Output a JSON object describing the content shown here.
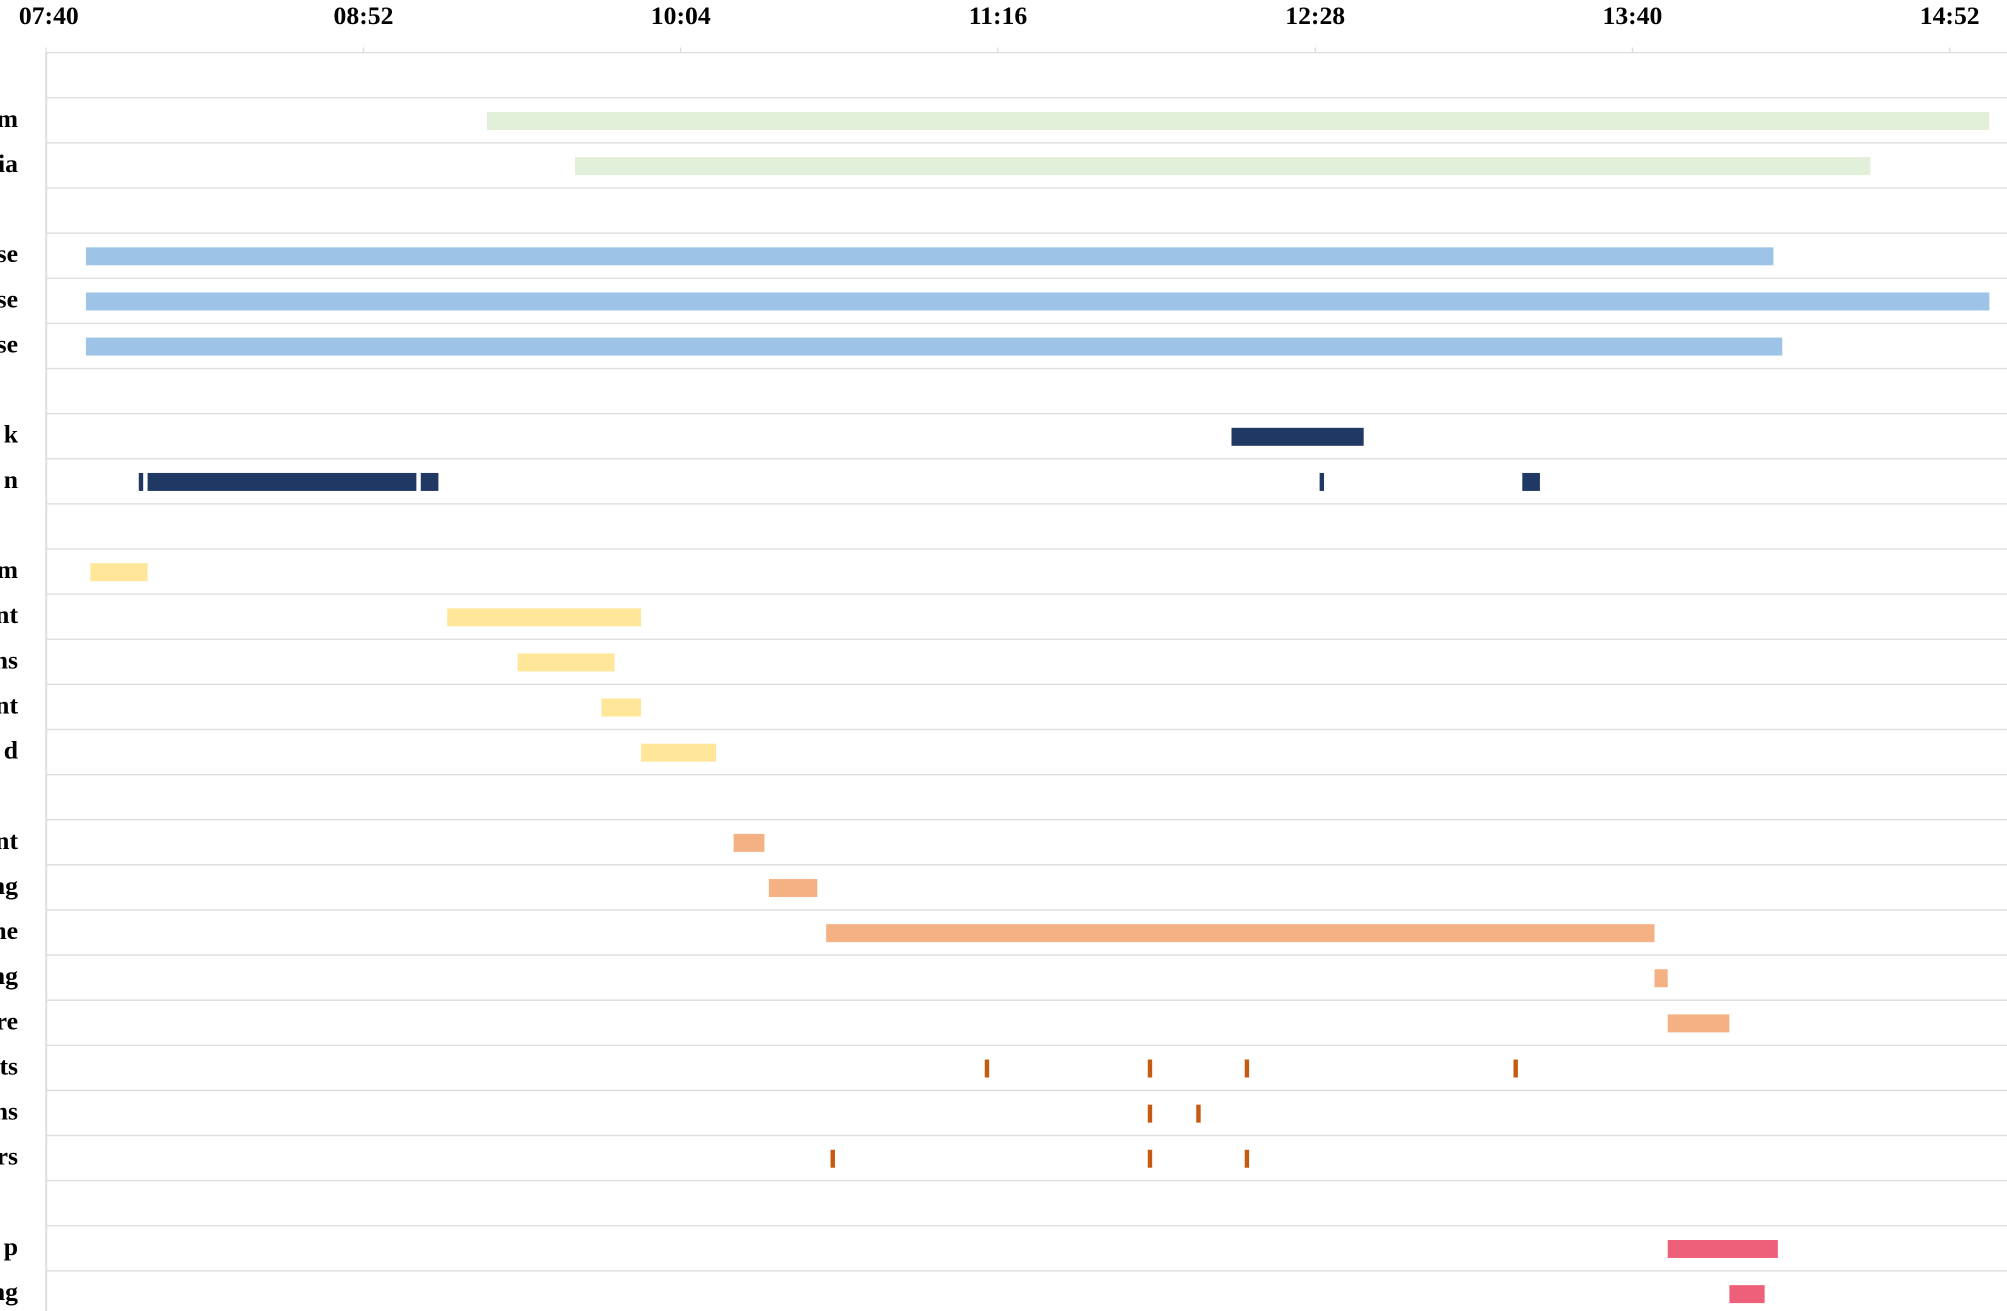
{
  "chart_data": {
    "type": "gantt",
    "xlim": [
      460,
      905
    ],
    "xticks": [
      {
        "value": 460,
        "label": "07:40"
      },
      {
        "value": 532,
        "label": "08:52"
      },
      {
        "value": 604,
        "label": "10:04"
      },
      {
        "value": 676,
        "label": "11:16"
      },
      {
        "value": 748,
        "label": "12:28"
      },
      {
        "value": 820,
        "label": "13:40"
      },
      {
        "value": 892,
        "label": "14:52"
      }
    ],
    "grid": true,
    "rows": [
      {
        "label": null,
        "color": null,
        "segments": []
      },
      {
        "label": "m",
        "color": "#e2efd9",
        "segments": [
          [
            560,
            901
          ]
        ]
      },
      {
        "label": "ia",
        "color": "#e2efd9",
        "segments": [
          [
            580,
            874
          ]
        ]
      },
      {
        "label": null,
        "color": null,
        "segments": []
      },
      {
        "label": "se",
        "color": "#9dc3e6",
        "segments": [
          [
            469,
            852
          ]
        ]
      },
      {
        "label": "se",
        "color": "#9dc3e6",
        "segments": [
          [
            469,
            901
          ]
        ]
      },
      {
        "label": "se",
        "color": "#9dc3e6",
        "segments": [
          [
            469,
            854
          ]
        ]
      },
      {
        "label": null,
        "color": null,
        "segments": []
      },
      {
        "label": "k",
        "color": "#203864",
        "segments": [
          [
            729,
            759
          ]
        ]
      },
      {
        "label": "n",
        "color": "#203864",
        "segments": [
          [
            481,
            482
          ],
          [
            483,
            544
          ],
          [
            545,
            549
          ],
          [
            749,
            750
          ],
          [
            795,
            799
          ]
        ]
      },
      {
        "label": null,
        "color": null,
        "segments": []
      },
      {
        "label": "m",
        "color": "#ffe699",
        "segments": [
          [
            470,
            483
          ]
        ]
      },
      {
        "label": "nt",
        "color": "#ffe699",
        "segments": [
          [
            551,
            595
          ]
        ]
      },
      {
        "label": "ns",
        "color": "#ffe699",
        "segments": [
          [
            567,
            589
          ]
        ]
      },
      {
        "label": "nt",
        "color": "#ffe699",
        "segments": [
          [
            586,
            595
          ]
        ]
      },
      {
        "label": "d",
        "color": "#ffe699",
        "segments": [
          [
            595,
            612
          ]
        ]
      },
      {
        "label": null,
        "color": null,
        "segments": []
      },
      {
        "label": "nt",
        "color": "#f4b183",
        "segments": [
          [
            616,
            623
          ]
        ]
      },
      {
        "label": "ng",
        "color": "#f4b183",
        "segments": [
          [
            624,
            635
          ]
        ]
      },
      {
        "label": "ne",
        "color": "#f4b183",
        "segments": [
          [
            637,
            825
          ]
        ]
      },
      {
        "label": "ng",
        "color": "#f4b183",
        "segments": [
          [
            825,
            828
          ]
        ]
      },
      {
        "label": "re",
        "color": "#f4b183",
        "segments": [
          [
            828,
            842
          ]
        ]
      },
      {
        "label": "ts",
        "color": "#c55a11",
        "segments": [
          [
            673,
            674
          ],
          [
            710,
            711
          ],
          [
            732,
            733
          ],
          [
            793,
            794
          ]
        ]
      },
      {
        "label": "ns",
        "color": "#c55a11",
        "segments": [
          [
            710,
            711
          ],
          [
            721,
            722
          ]
        ]
      },
      {
        "label": "rs",
        "color": "#c55a11",
        "segments": [
          [
            638,
            639
          ],
          [
            710,
            711
          ],
          [
            732,
            733
          ]
        ]
      },
      {
        "label": null,
        "color": null,
        "segments": []
      },
      {
        "label": "p",
        "color": "#ee6079",
        "segments": [
          [
            828,
            853
          ]
        ]
      },
      {
        "label": "ng",
        "color": "#ee6079",
        "segments": [
          [
            842,
            850
          ]
        ]
      }
    ]
  }
}
